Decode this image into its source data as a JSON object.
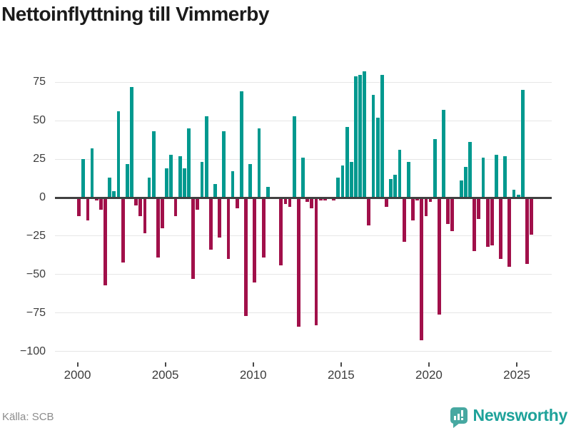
{
  "title": "Nettoinflyttning till Vimmerby",
  "source": "Källa: SCB",
  "brand": {
    "name": "Newsworthy"
  },
  "chart_data": {
    "type": "bar",
    "title": "Nettoinflyttning till Vimmerby",
    "frequency": "quarterly",
    "x_start": "2000 Q1",
    "x_end": "2025 Q4",
    "x_tick_labels": [
      "2000",
      "2005",
      "2010",
      "2015",
      "2020",
      "2025"
    ],
    "y_ticks": [
      75,
      50,
      25,
      0,
      -25,
      -50,
      -75,
      -100
    ],
    "y_tick_labels": [
      "75",
      "50",
      "25",
      "0",
      "−25",
      "−50",
      "−75",
      "−100"
    ],
    "ylim": [
      -105,
      89
    ],
    "grid": true,
    "legend": false,
    "series": [
      {
        "name": "Nettoinflyttning",
        "values": [
          -12,
          25,
          -15,
          32,
          -2,
          -8,
          -57,
          13,
          4,
          56,
          -42,
          22,
          72,
          -5,
          -12,
          -23,
          13,
          43,
          -39,
          -20,
          19,
          28,
          -12,
          27,
          19,
          45,
          -53,
          -8,
          23,
          53,
          -34,
          9,
          -26,
          43,
          -40,
          17,
          -7,
          69,
          -77,
          22,
          -55,
          45,
          -39,
          7,
          0,
          0,
          -44,
          -4,
          -6,
          53,
          -84,
          26,
          -3,
          -7,
          -83,
          -2,
          -2,
          -1,
          -2,
          13,
          21,
          46,
          23,
          79,
          80,
          82,
          -18,
          67,
          52,
          80,
          -6,
          12,
          15,
          31,
          -29,
          23,
          -15,
          -2,
          -93,
          -12,
          -3,
          38,
          -76,
          57,
          -17,
          -22,
          0,
          11,
          20,
          36,
          -35,
          -14,
          26,
          -32,
          -31,
          28,
          -40,
          27,
          -45,
          5,
          2,
          70,
          -43,
          -24
        ]
      }
    ],
    "colors": {
      "positive": "#00998f",
      "negative": "#a1104a",
      "grid": "#e6e6e6",
      "zero_line": "#414141",
      "axis_text": "#3d3d3d",
      "title_text": "#1b1b1b",
      "source_text": "#8c8c8c",
      "brand_teal": "#1ea29a",
      "icon_teal": "#47a8a1"
    }
  }
}
